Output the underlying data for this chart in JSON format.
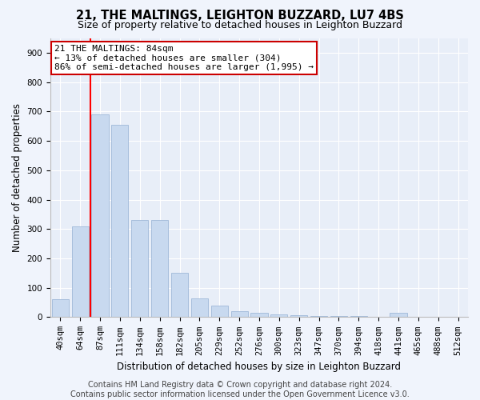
{
  "title1": "21, THE MALTINGS, LEIGHTON BUZZARD, LU7 4BS",
  "title2": "Size of property relative to detached houses in Leighton Buzzard",
  "xlabel": "Distribution of detached houses by size in Leighton Buzzard",
  "ylabel": "Number of detached properties",
  "categories": [
    "40sqm",
    "64sqm",
    "87sqm",
    "111sqm",
    "134sqm",
    "158sqm",
    "182sqm",
    "205sqm",
    "229sqm",
    "252sqm",
    "276sqm",
    "300sqm",
    "323sqm",
    "347sqm",
    "370sqm",
    "394sqm",
    "418sqm",
    "441sqm",
    "465sqm",
    "488sqm",
    "512sqm"
  ],
  "values": [
    60,
    310,
    690,
    655,
    330,
    330,
    150,
    65,
    40,
    20,
    15,
    10,
    8,
    5,
    3,
    3,
    2,
    15,
    2,
    1,
    2
  ],
  "bar_color": "#c8d9ef",
  "bar_edge_color": "#a0b8d8",
  "red_line_x": 1.5,
  "annotation_line1": "21 THE MALTINGS: 84sqm",
  "annotation_line2": "← 13% of detached houses are smaller (304)",
  "annotation_line3": "86% of semi-detached houses are larger (1,995) →",
  "annotation_box_facecolor": "#ffffff",
  "annotation_box_edgecolor": "#cc0000",
  "ylim_max": 950,
  "yticks": [
    0,
    100,
    200,
    300,
    400,
    500,
    600,
    700,
    800,
    900
  ],
  "footer1": "Contains HM Land Registry data © Crown copyright and database right 2024.",
  "footer2": "Contains public sector information licensed under the Open Government Licence v3.0.",
  "fig_facecolor": "#f0f4fc",
  "axes_facecolor": "#e8eef8",
  "grid_color": "#ffffff",
  "title1_fontsize": 10.5,
  "title2_fontsize": 9,
  "tick_fontsize": 7.5,
  "ylabel_fontsize": 8.5,
  "xlabel_fontsize": 8.5,
  "annotation_fontsize": 8,
  "footer_fontsize": 7
}
